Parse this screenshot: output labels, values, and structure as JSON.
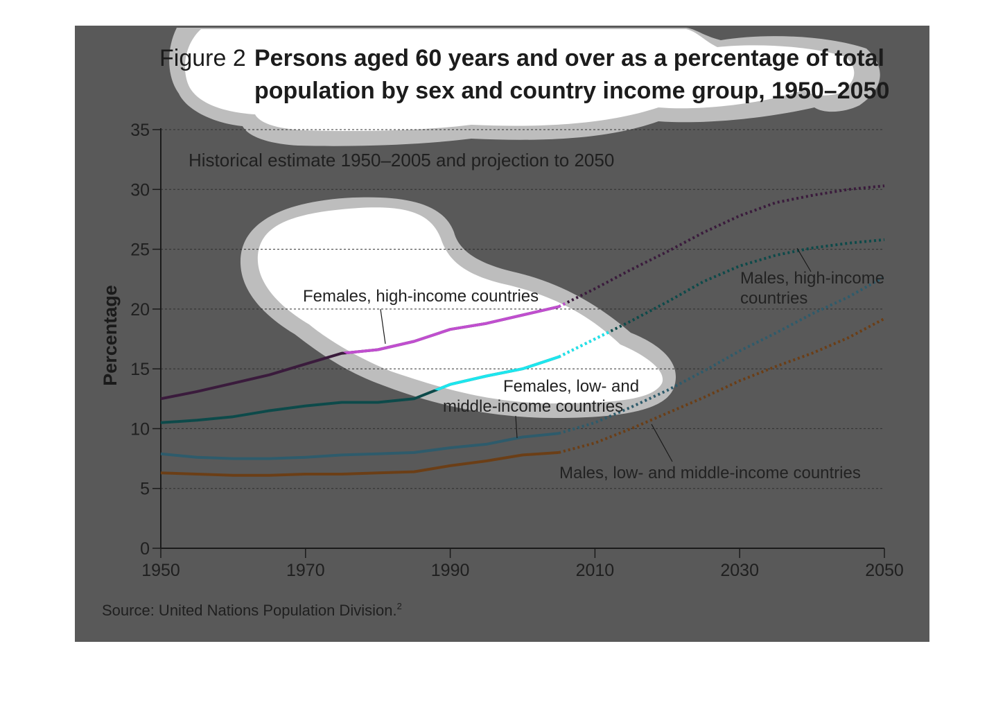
{
  "figure": {
    "number_label": "Figure 2",
    "title_line1": "Persons aged 60 years and over as a percentage of total",
    "title_line2": "population by sex and country income group, 1950–2050",
    "subtitle": "Historical estimate 1950–2005 and projection to 2050",
    "source": "Source: United Nations Population Division.",
    "source_superscript": "2"
  },
  "colors": {
    "panel_background": "#595959",
    "blob_highlight": "#ffffff",
    "blob_ring": "#bdbdbd"
  },
  "chart_data": {
    "type": "line",
    "ylabel": "Percentage",
    "xlabel": "",
    "xlim": [
      1950,
      2050
    ],
    "ylim": [
      0,
      35
    ],
    "x_ticks": [
      1950,
      1970,
      1990,
      2010,
      2030,
      2050
    ],
    "y_ticks": [
      0,
      5,
      10,
      15,
      20,
      25,
      30,
      35
    ],
    "y_tick_labels": [
      "0",
      "5",
      "10",
      "15",
      "20",
      "25",
      "30",
      "35"
    ],
    "grid": "horizontal dashed",
    "historical_end_year": 2005,
    "line_style": "solid to 2005, dotted projection to 2050",
    "series": [
      {
        "name": "Females, high-income countries",
        "color": "#3a1b3c",
        "highlight_color": "#c04fcf",
        "points": [
          [
            1950,
            12.5
          ],
          [
            1955,
            13.1
          ],
          [
            1960,
            13.8
          ],
          [
            1965,
            14.5
          ],
          [
            1970,
            15.4
          ],
          [
            1975,
            16.3
          ],
          [
            1980,
            16.6
          ],
          [
            1985,
            17.3
          ],
          [
            1990,
            18.3
          ],
          [
            1995,
            18.8
          ],
          [
            2000,
            19.5
          ],
          [
            2005,
            20.2
          ],
          [
            2010,
            21.7
          ],
          [
            2015,
            23.3
          ],
          [
            2020,
            24.8
          ],
          [
            2025,
            26.4
          ],
          [
            2030,
            27.8
          ],
          [
            2035,
            28.9
          ],
          [
            2040,
            29.5
          ],
          [
            2045,
            30.0
          ],
          [
            2050,
            30.3
          ]
        ]
      },
      {
        "name": "Males, high-income countries",
        "color": "#0d4a4a",
        "highlight_color": "#1de6ee",
        "points": [
          [
            1950,
            10.5
          ],
          [
            1955,
            10.7
          ],
          [
            1960,
            11.0
          ],
          [
            1965,
            11.5
          ],
          [
            1970,
            11.9
          ],
          [
            1975,
            12.2
          ],
          [
            1980,
            12.2
          ],
          [
            1985,
            12.5
          ],
          [
            1990,
            13.7
          ],
          [
            1995,
            14.4
          ],
          [
            2000,
            15.0
          ],
          [
            2005,
            16.0
          ],
          [
            2010,
            17.5
          ],
          [
            2015,
            19.0
          ],
          [
            2020,
            20.6
          ],
          [
            2025,
            22.3
          ],
          [
            2030,
            23.6
          ],
          [
            2035,
            24.5
          ],
          [
            2040,
            25.1
          ],
          [
            2045,
            25.5
          ],
          [
            2050,
            25.8
          ]
        ]
      },
      {
        "name": "Females, low- and middle-income countries",
        "color": "#2e5b6b",
        "points": [
          [
            1950,
            7.9
          ],
          [
            1955,
            7.6
          ],
          [
            1960,
            7.5
          ],
          [
            1965,
            7.5
          ],
          [
            1970,
            7.6
          ],
          [
            1975,
            7.8
          ],
          [
            1980,
            7.9
          ],
          [
            1985,
            8.0
          ],
          [
            1990,
            8.4
          ],
          [
            1995,
            8.7
          ],
          [
            2000,
            9.3
          ],
          [
            2005,
            9.6
          ],
          [
            2010,
            10.5
          ],
          [
            2015,
            11.8
          ],
          [
            2020,
            13.2
          ],
          [
            2025,
            14.8
          ],
          [
            2030,
            16.5
          ],
          [
            2035,
            18.0
          ],
          [
            2040,
            19.6
          ],
          [
            2045,
            21.0
          ],
          [
            2050,
            22.7
          ]
        ]
      },
      {
        "name": "Males, low- and middle-income countries",
        "color": "#6b3e16",
        "points": [
          [
            1950,
            6.3
          ],
          [
            1955,
            6.2
          ],
          [
            1960,
            6.1
          ],
          [
            1965,
            6.1
          ],
          [
            1970,
            6.2
          ],
          [
            1975,
            6.2
          ],
          [
            1980,
            6.3
          ],
          [
            1985,
            6.4
          ],
          [
            1990,
            6.9
          ],
          [
            1995,
            7.3
          ],
          [
            2000,
            7.8
          ],
          [
            2005,
            8.0
          ],
          [
            2010,
            8.8
          ],
          [
            2015,
            10.0
          ],
          [
            2020,
            11.3
          ],
          [
            2025,
            12.6
          ],
          [
            2030,
            14.0
          ],
          [
            2035,
            15.2
          ],
          [
            2040,
            16.3
          ],
          [
            2045,
            17.6
          ],
          [
            2050,
            19.2
          ]
        ]
      }
    ],
    "annotations": [
      {
        "text": "Females, high-income countries",
        "line1": "Females, high-income countries",
        "line2": ""
      },
      {
        "text": "Males, high-income countries",
        "line1": "Males, high-income",
        "line2": "countries"
      },
      {
        "text": "Females, low- and middle-income countries",
        "line1": "Females, low- and",
        "line2": "middle-income countries"
      },
      {
        "text": "Males, low- and middle-income countries",
        "line1": "Males, low- and middle-income countries",
        "line2": ""
      }
    ]
  }
}
